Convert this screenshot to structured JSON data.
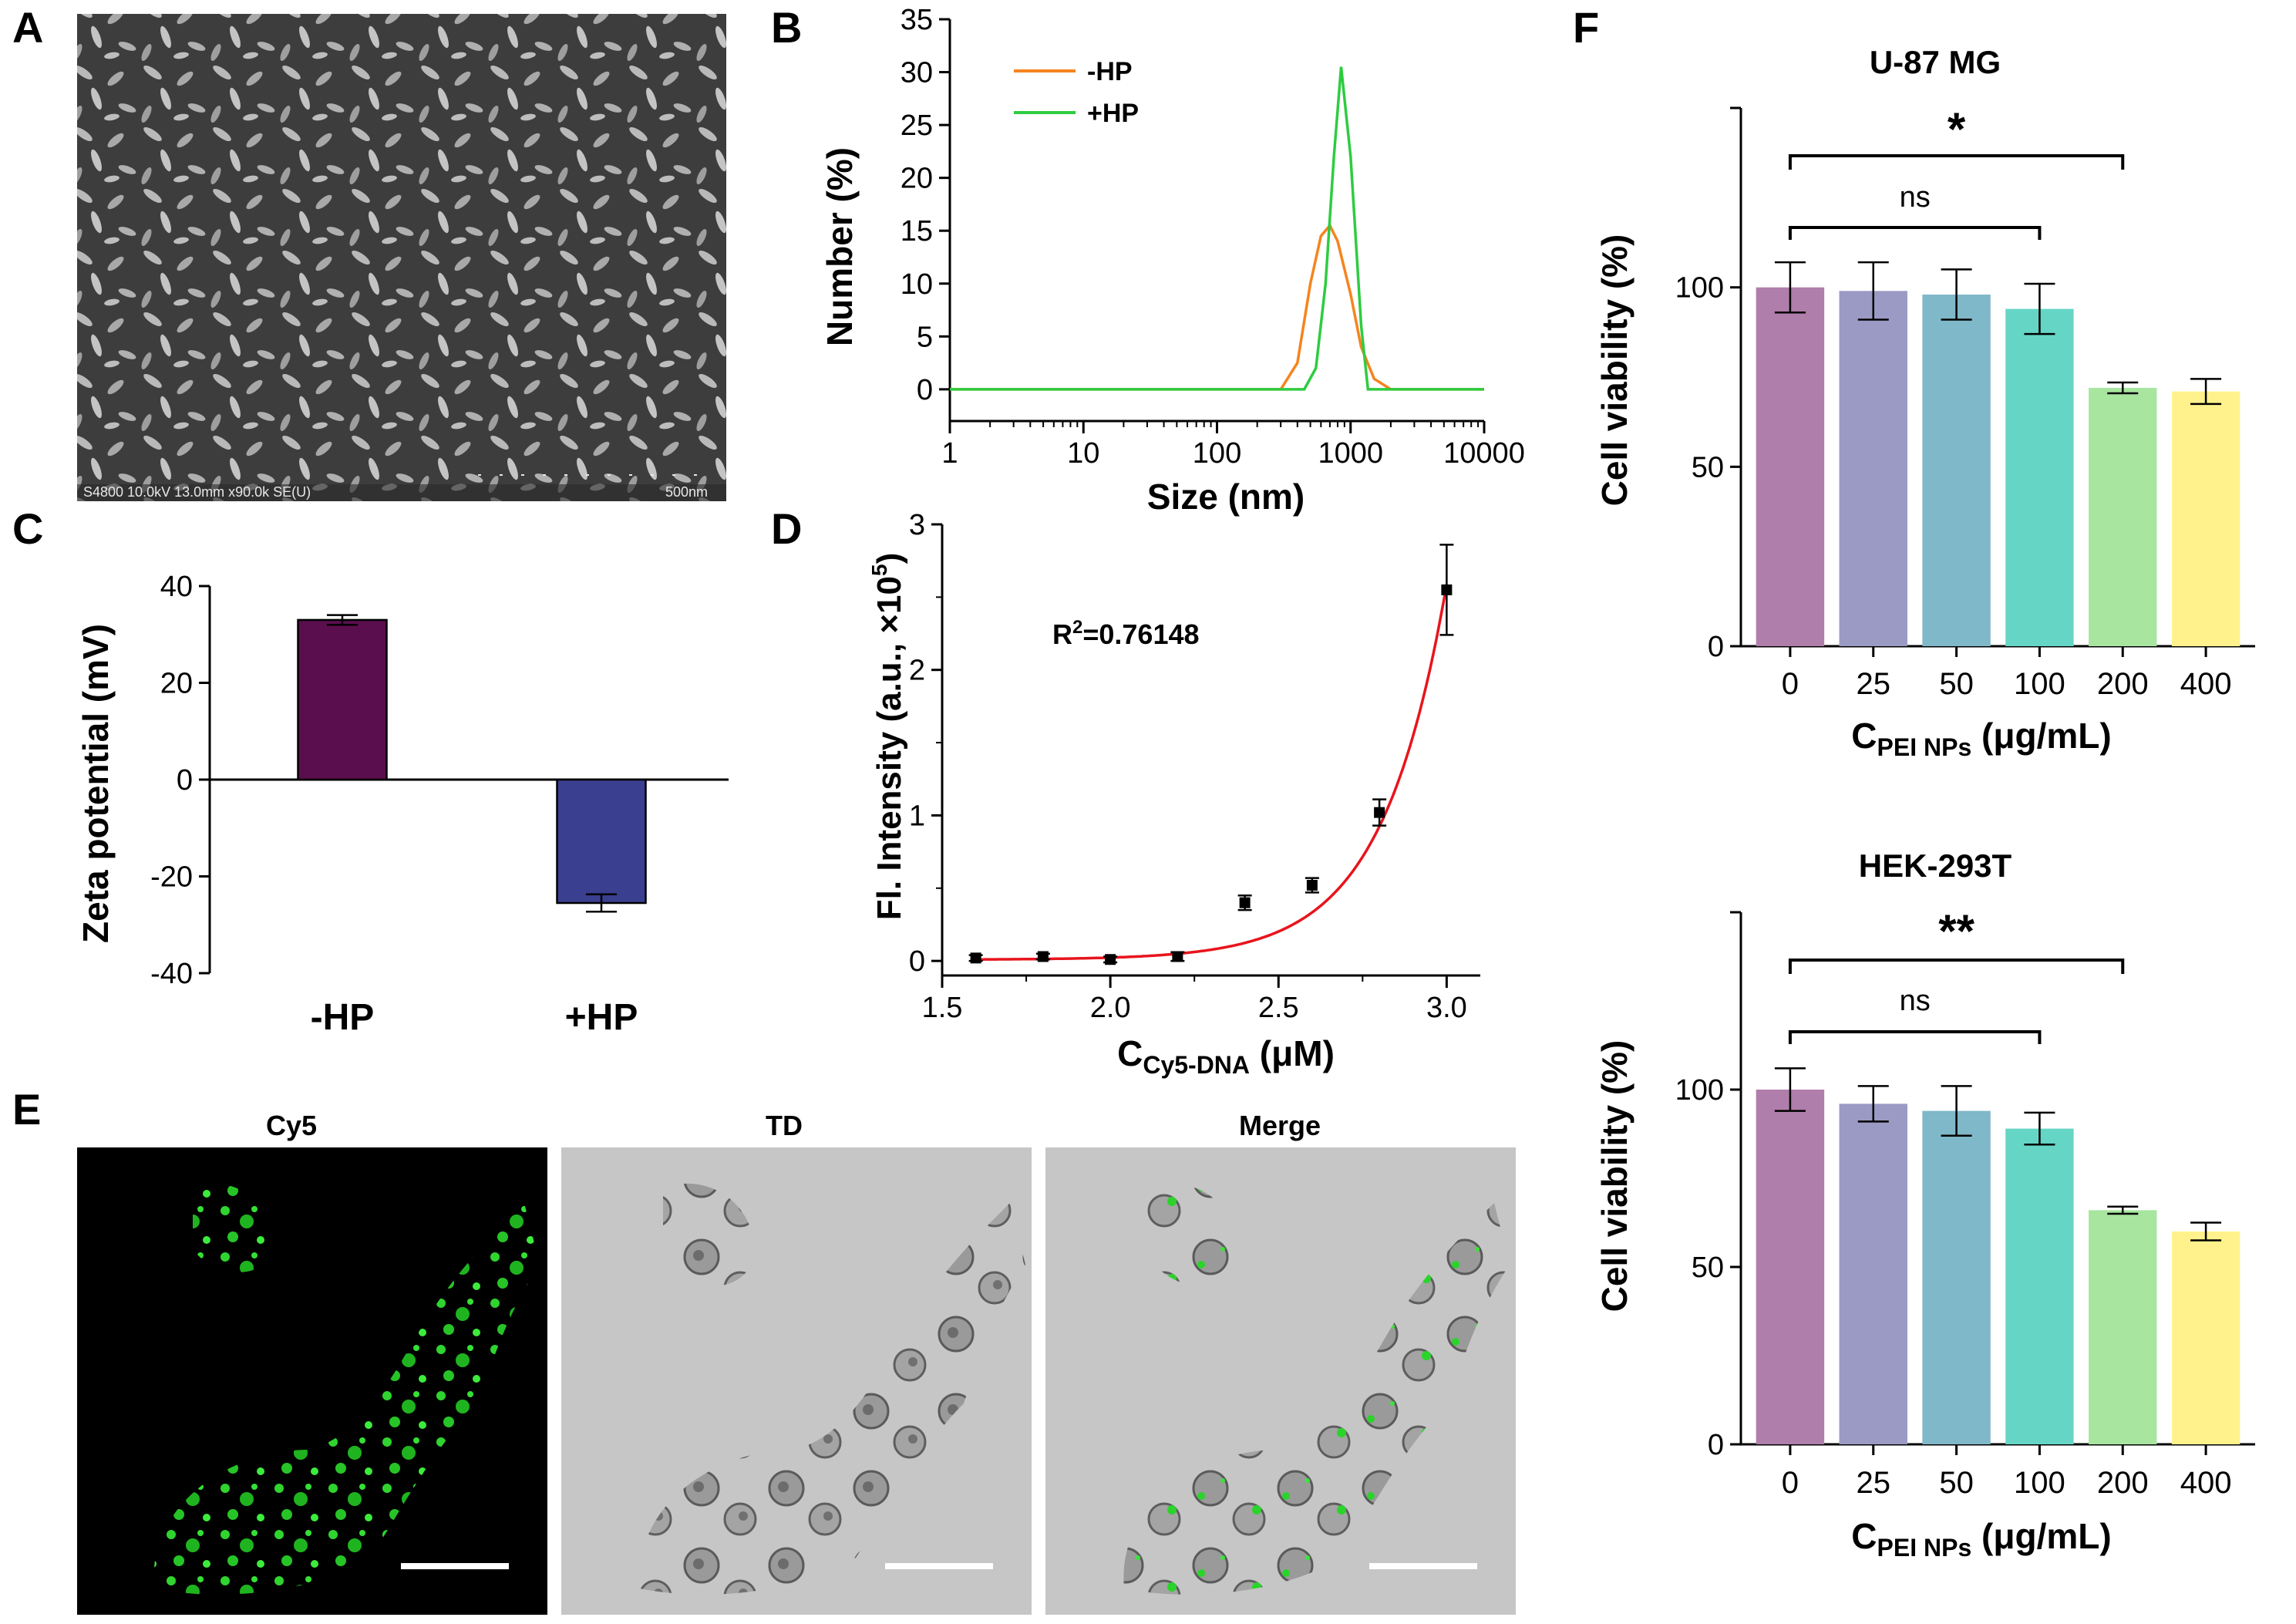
{
  "colors": {
    "hp_minus": "#F5841F",
    "hp_plus": "#2ECC40",
    "zeta_minus": "#5A0E4E",
    "zeta_plus": "#3A3F8F",
    "fit_line": "#E8141C",
    "cell_bars": [
      "#B07EAA",
      "#9A9AC4",
      "#7FB8C8",
      "#65D6C6",
      "#A8E6A0",
      "#FFF28C"
    ]
  },
  "panels": {
    "A": {
      "letter": "A",
      "sem_info": "S4800 10.0kV 13.0mm x90.0k SE(U)",
      "scale_label": "500nm"
    },
    "B": {
      "letter": "B",
      "xlabel": "Size (nm)",
      "ylabel": "Number (%)",
      "xticks": [
        "1",
        "10",
        "100",
        "1000",
        "10000"
      ],
      "yticks": [
        "0",
        "5",
        "10",
        "15",
        "20",
        "25",
        "30",
        "35"
      ],
      "legend": [
        "-HP",
        "+HP"
      ]
    },
    "C": {
      "letter": "C",
      "ylabel": "Zeta potential (mV)",
      "yticks": [
        "40",
        "20",
        "0",
        "-20",
        "-40"
      ],
      "categories": [
        "-HP",
        "+HP"
      ]
    },
    "D": {
      "letter": "D",
      "ylabel_pre": "Fl. Intensity (a.u., ×10",
      "ylabel_sup": "5",
      "ylabel_post": ")",
      "xlabel_main": "C",
      "xlabel_sub": "Cy5-DNA",
      "xlabel_unit": " (μM)",
      "xticks": [
        "1.5",
        "2.0",
        "2.5",
        "3.0"
      ],
      "yticks": [
        "0",
        "1",
        "2",
        "3"
      ],
      "r2_pre": "R",
      "r2_sup": "2",
      "r2_post": "=0.76148"
    },
    "E": {
      "letter": "E",
      "titles": [
        "Cy5",
        "TD",
        "Merge"
      ]
    },
    "F": {
      "letter": "F",
      "titles": [
        "U-87 MG",
        "HEK-293T"
      ],
      "ylabel": "Cell viability (%)",
      "yticks": [
        "0",
        "50",
        "100"
      ],
      "xticks": [
        "0",
        "25",
        "50",
        "100",
        "200",
        "400"
      ],
      "xlabel_main": "C",
      "xlabel_sub": "PEI NPs",
      "xlabel_unit": " (μg/mL)",
      "sig_top": [
        "*",
        "**"
      ],
      "ns_label": "ns"
    }
  },
  "chart_data": [
    {
      "panel": "B",
      "type": "line",
      "xlabel": "Size (nm)",
      "ylabel": "Number (%)",
      "xscale": "log",
      "xlim": [
        1,
        10000
      ],
      "ylim": [
        -3,
        35
      ],
      "legend_position": "top-left",
      "series": [
        {
          "name": "-HP",
          "x": [
            1,
            300,
            400,
            500,
            600,
            700,
            800,
            1000,
            1200,
            1500,
            2000,
            10000
          ],
          "y": [
            0,
            0,
            2.5,
            10,
            14.5,
            15.5,
            14,
            9,
            4,
            1,
            0,
            0
          ]
        },
        {
          "name": "+HP",
          "x": [
            1,
            450,
            550,
            650,
            750,
            850,
            1000,
            1200,
            1350,
            10000
          ],
          "y": [
            0,
            0,
            2,
            10,
            22,
            30.5,
            22,
            6,
            0,
            0
          ]
        }
      ]
    },
    {
      "panel": "C",
      "type": "bar",
      "ylabel": "Zeta potential (mV)",
      "categories": [
        "-HP",
        "+HP"
      ],
      "values": [
        33,
        -25.5
      ],
      "errors": [
        1,
        1.8
      ],
      "ylim": [
        -40,
        40
      ]
    },
    {
      "panel": "D",
      "type": "scatter",
      "xlabel": "CCy5-DNA (μM)",
      "ylabel": "Fl. Intensity (a.u., ×10^5)",
      "xlim": [
        1.5,
        3.1
      ],
      "ylim": [
        -0.1,
        3.0
      ],
      "points": {
        "x": [
          1.6,
          1.8,
          2.0,
          2.2,
          2.4,
          2.6,
          2.8,
          3.0
        ],
        "y": [
          0.02,
          0.03,
          0.01,
          0.03,
          0.4,
          0.52,
          1.02,
          2.55
        ],
        "err": [
          0.02,
          0.02,
          0.02,
          0.03,
          0.05,
          0.05,
          0.09,
          0.31
        ]
      },
      "fit": {
        "type": "exponential",
        "y0": 0.0084,
        "A": 4.6e-07,
        "k": 5.18,
        "r2": 0.76148
      }
    },
    {
      "panel": "F-top",
      "type": "bar",
      "title": "U-87 MG",
      "ylabel": "Cell viability (%)",
      "xlabel": "CPEI NPs (μg/mL)",
      "categories": [
        "0",
        "25",
        "50",
        "100",
        "200",
        "400"
      ],
      "values": [
        100,
        99,
        98,
        94,
        72,
        71
      ],
      "errors": [
        7,
        8,
        7,
        7,
        1.5,
        3.5
      ],
      "ylim": [
        0,
        150
      ],
      "significance": [
        {
          "from": "0",
          "to": "200",
          "label": "*"
        },
        {
          "from": "0",
          "to": "100",
          "label": "ns"
        }
      ]
    },
    {
      "panel": "F-bottom",
      "type": "bar",
      "title": "HEK-293T",
      "ylabel": "Cell viability (%)",
      "xlabel": "CPEI NPs (μg/mL)",
      "categories": [
        "0",
        "25",
        "50",
        "100",
        "200",
        "400"
      ],
      "values": [
        100,
        96,
        94,
        89,
        66,
        60
      ],
      "errors": [
        6,
        5,
        7,
        4.5,
        1,
        2.5
      ],
      "ylim": [
        0,
        150
      ],
      "significance": [
        {
          "from": "0",
          "to": "200",
          "label": "**"
        },
        {
          "from": "0",
          "to": "100",
          "label": "ns"
        }
      ]
    }
  ]
}
